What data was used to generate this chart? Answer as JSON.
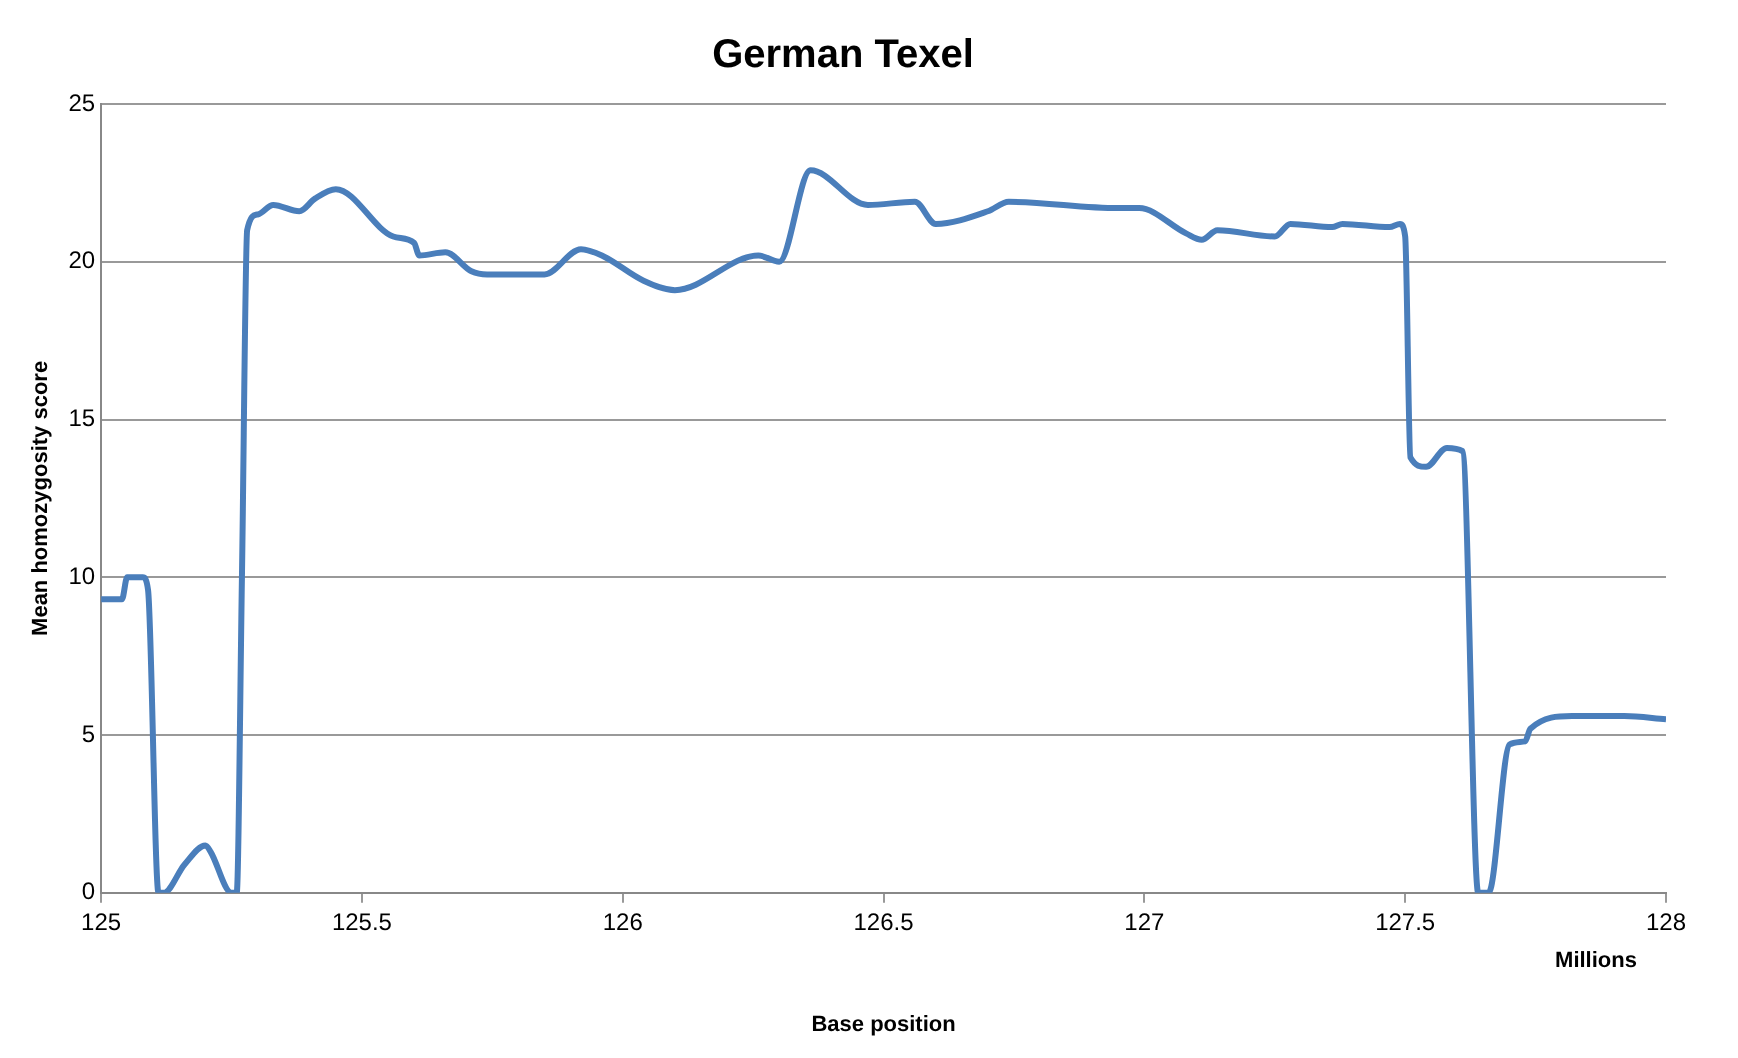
{
  "chart_data": {
    "type": "line",
    "title": "German Texel",
    "xlabel": "Base position",
    "ylabel": "Mean homozygosity score",
    "annotations": [
      "Millions"
    ],
    "x": [
      125.0,
      125.04,
      125.05,
      125.08,
      125.09,
      125.11,
      125.12,
      125.16,
      125.2,
      125.21,
      125.25,
      125.26,
      125.27,
      125.28,
      125.3,
      125.33,
      125.38,
      125.41,
      125.45,
      125.56,
      125.6,
      125.61,
      125.66,
      125.71,
      125.74,
      125.85,
      125.92,
      125.96,
      126.04,
      126.1,
      126.26,
      126.3,
      126.36,
      126.47,
      126.56,
      126.6,
      126.7,
      126.74,
      126.95,
      126.99,
      127.08,
      127.11,
      127.14,
      127.25,
      127.28,
      127.36,
      127.38,
      127.47,
      127.49,
      127.5,
      127.51,
      127.54,
      127.58,
      127.61,
      127.64,
      127.66,
      127.7,
      127.73,
      127.74,
      127.82,
      127.92,
      128.0
    ],
    "series": [
      {
        "color": "#4a7ebb",
        "values": [
          9.3,
          9.3,
          10.0,
          10.0,
          9.6,
          0,
          0,
          0.9,
          1.5,
          1.3,
          0,
          0,
          10,
          21.0,
          21.5,
          21.8,
          21.6,
          22.0,
          22.3,
          20.8,
          20.6,
          20.2,
          20.3,
          19.7,
          19.6,
          19.6,
          20.4,
          20.2,
          19.4,
          19.1,
          20.2,
          20.0,
          22.9,
          21.8,
          21.9,
          21.2,
          21.6,
          21.9,
          21.7,
          21.7,
          20.9,
          20.7,
          21.0,
          20.8,
          21.2,
          21.1,
          21.2,
          21.1,
          21.2,
          20.8,
          13.8,
          13.5,
          14.1,
          14.0,
          0,
          0,
          4.7,
          4.8,
          5.2,
          5.6,
          5.6,
          5.5
        ]
      }
    ],
    "xlim": [
      125,
      128
    ],
    "xticks": [
      125,
      125.5,
      126,
      126.5,
      127,
      127.5,
      128
    ],
    "ylim": [
      0,
      25
    ],
    "yticks": [
      0,
      5,
      10,
      15,
      20,
      25
    ],
    "grid": "y",
    "marker": "none",
    "line_style": "solid",
    "legend": false
  }
}
